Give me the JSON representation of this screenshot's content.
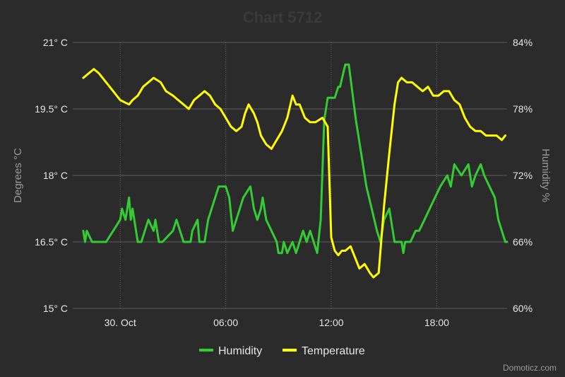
{
  "chart_data": {
    "type": "line",
    "title": "Chart 5712",
    "x_axis": {
      "tick_labels": [
        "30. Oct",
        "06:00",
        "12:00",
        "18:00"
      ],
      "tick_hours": [
        0,
        6,
        12,
        18
      ],
      "range_hours": [
        -2.7,
        22
      ]
    },
    "y_axis_left": {
      "label": "Degrees °C",
      "range": [
        15,
        21
      ],
      "tick_labels": [
        "21° C",
        "19.5° C",
        "18° C",
        "16.5° C",
        "15° C"
      ]
    },
    "y_axis_right": {
      "label": "Humidity %",
      "range": [
        60,
        84
      ],
      "tick_labels": [
        "84%",
        "78%",
        "72%",
        "66%",
        "60%"
      ]
    },
    "grid": true,
    "legend_position": "bottom-center",
    "series": [
      {
        "name": "Humidity",
        "color": "#33cc33",
        "axis": "right",
        "hours": [
          -2.1,
          -2.0,
          -1.9,
          -1.6,
          -1.0,
          -0.8,
          -0.4,
          0.0,
          0.1,
          0.3,
          0.5,
          0.6,
          0.7,
          0.9,
          1.0,
          1.2,
          1.4,
          1.6,
          1.9,
          2.0,
          2.2,
          2.4,
          3.0,
          3.2,
          3.6,
          4.0,
          4.1,
          4.4,
          4.5,
          4.8,
          5.0,
          5.2,
          5.4,
          5.6,
          6.0,
          6.2,
          6.4,
          6.6,
          7.0,
          7.4,
          7.6,
          7.8,
          8.0,
          8.1,
          8.3,
          8.6,
          8.9,
          9.0,
          9.2,
          9.3,
          9.5,
          9.8,
          10.0,
          10.2,
          10.4,
          10.6,
          10.8,
          11.2,
          11.4,
          11.6,
          11.8,
          12.0,
          12.2,
          12.4,
          12.5,
          12.8,
          13.0,
          13.4,
          13.6,
          14.0,
          14.3,
          14.6,
          14.8,
          15.0,
          15.3,
          15.6,
          15.8,
          16.0,
          16.1,
          16.2,
          16.5,
          16.8,
          17.0,
          17.3,
          17.6,
          17.9,
          18.2,
          18.6,
          18.8,
          19.0,
          19.4,
          19.8,
          20.0,
          20.2,
          20.5,
          20.7,
          21.0,
          21.3,
          21.5,
          21.7,
          21.9,
          22.0
        ],
        "values": [
          67,
          66,
          67,
          66,
          66,
          66,
          67,
          68,
          69,
          68,
          70,
          68,
          69,
          67,
          66,
          66,
          67,
          68,
          67,
          68,
          66,
          66,
          67,
          68,
          66,
          66,
          67,
          68,
          66,
          66,
          68,
          69,
          70,
          71,
          71,
          70,
          67,
          68,
          70,
          71,
          69,
          68,
          69,
          70,
          68,
          67,
          66,
          65,
          65,
          66,
          65,
          66,
          65,
          66,
          67,
          66,
          67,
          65,
          68,
          77,
          79,
          79,
          79,
          80,
          80,
          82,
          82,
          77,
          75,
          71,
          69,
          67,
          66,
          68,
          69,
          66,
          66,
          66,
          65,
          66,
          66,
          67,
          67,
          68,
          69,
          70,
          71,
          72,
          71,
          73,
          72,
          73,
          71,
          72,
          73,
          72,
          71,
          70,
          68,
          67,
          66,
          66
        ]
      },
      {
        "name": "Temperature",
        "color": "#ffff00",
        "axis": "left",
        "hours": [
          -2.1,
          -1.8,
          -1.5,
          -1.2,
          -0.8,
          -0.4,
          0.0,
          0.5,
          0.7,
          1.0,
          1.3,
          1.6,
          1.9,
          2.3,
          2.6,
          3.0,
          3.3,
          3.6,
          3.9,
          4.2,
          4.5,
          4.8,
          5.1,
          5.4,
          5.7,
          6.0,
          6.3,
          6.6,
          6.9,
          7.1,
          7.3,
          7.6,
          7.8,
          8.0,
          8.3,
          8.6,
          8.9,
          9.2,
          9.5,
          9.8,
          10.0,
          10.2,
          10.5,
          10.8,
          11.1,
          11.5,
          11.8,
          12.0,
          12.2,
          12.4,
          12.6,
          12.8,
          13.1,
          13.4,
          13.6,
          13.9,
          14.2,
          14.4,
          14.7,
          15.0,
          15.3,
          15.6,
          15.8,
          16.0,
          16.3,
          16.6,
          16.9,
          17.2,
          17.5,
          17.8,
          18.1,
          18.4,
          18.7,
          19.0,
          19.3,
          19.6,
          19.9,
          20.2,
          20.5,
          20.8,
          21.1,
          21.4,
          21.7,
          21.9
        ],
        "values": [
          20.2,
          20.3,
          20.4,
          20.3,
          20.1,
          19.9,
          19.7,
          19.6,
          19.7,
          19.8,
          20.0,
          20.1,
          20.2,
          20.1,
          19.9,
          19.8,
          19.7,
          19.6,
          19.5,
          19.7,
          19.8,
          19.9,
          19.8,
          19.6,
          19.5,
          19.3,
          19.1,
          19.0,
          19.1,
          19.4,
          19.6,
          19.4,
          19.2,
          18.9,
          18.7,
          18.6,
          18.8,
          19.0,
          19.3,
          19.8,
          19.6,
          19.6,
          19.3,
          19.2,
          19.2,
          19.3,
          19.1,
          16.6,
          16.3,
          16.2,
          16.3,
          16.3,
          16.4,
          16.1,
          15.9,
          16.0,
          15.8,
          15.7,
          15.8,
          17.3,
          18.5,
          19.6,
          20.1,
          20.2,
          20.1,
          20.1,
          20.0,
          19.9,
          20.0,
          19.8,
          19.8,
          19.9,
          19.9,
          19.7,
          19.6,
          19.3,
          19.1,
          19.0,
          19.0,
          18.9,
          18.9,
          18.9,
          18.8,
          18.9
        ]
      }
    ]
  },
  "credit": "Domoticz.com"
}
